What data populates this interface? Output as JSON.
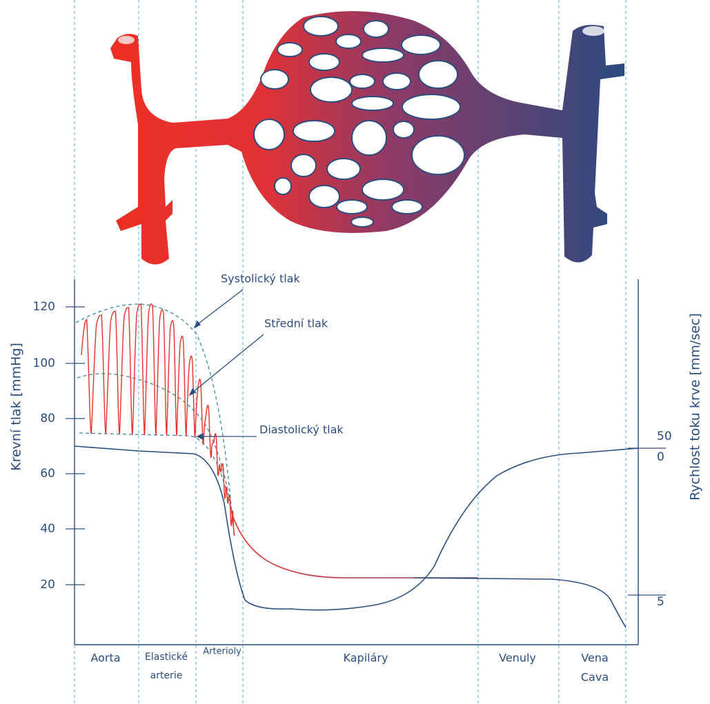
{
  "diagram": {
    "annotations": [
      "Systolický tlak",
      "Střední tlak",
      "Diastolický tlak"
    ],
    "left_axis": {
      "label": "Krevní tlak [mmHg]",
      "ticks": [
        120,
        100,
        80,
        60,
        40,
        20
      ]
    },
    "right_axis": {
      "label": "Rychlost toku krve [mm/sec]",
      "ticks": [
        50,
        0,
        5
      ]
    },
    "sections": [
      {
        "lines": [
          "Aorta"
        ]
      },
      {
        "lines": [
          "Elastické",
          "arterie"
        ]
      },
      {
        "lines": [
          "Arterioly"
        ]
      },
      {
        "lines": [
          "Kapiláry"
        ]
      },
      {
        "lines": [
          "Venuly"
        ]
      },
      {
        "lines": [
          "Vena",
          "Cava"
        ]
      }
    ]
  }
}
